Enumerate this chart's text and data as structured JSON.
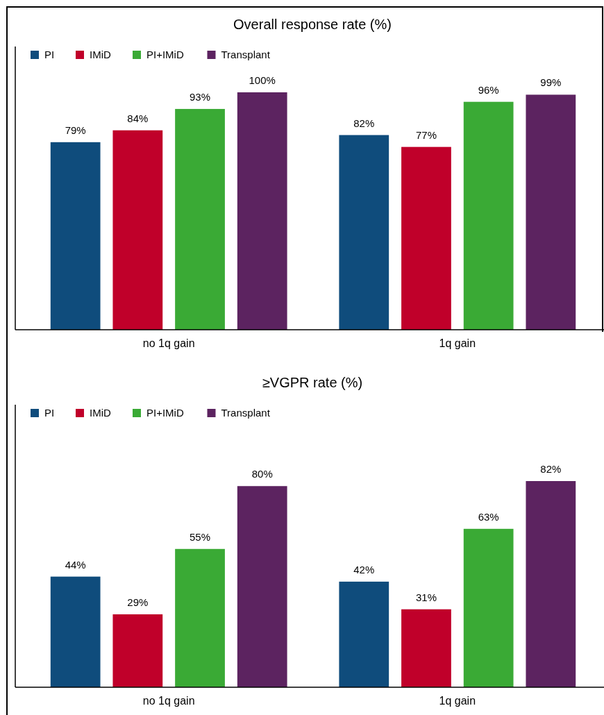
{
  "chart_data": [
    {
      "type": "bar",
      "title": "Overall response rate (%)",
      "categories": [
        "no 1q gain",
        "1q gain"
      ],
      "legend": "top left",
      "series": [
        {
          "name": "PI",
          "color": "#0f4c7c",
          "values": [
            79,
            82
          ],
          "value_labels": [
            "79%",
            "82%"
          ]
        },
        {
          "name": "IMiD",
          "color": "#c0002a",
          "values": [
            84,
            77
          ],
          "value_labels": [
            "84%",
            "77%"
          ]
        },
        {
          "name": "PI+IMiD",
          "color": "#3aaa35",
          "values": [
            93,
            96
          ],
          "value_labels": [
            "93%",
            "96%"
          ]
        },
        {
          "name": "Transplant",
          "color": "#5c2360",
          "values": [
            100,
            99
          ],
          "value_labels": [
            "100%",
            "99%"
          ]
        }
      ]
    },
    {
      "type": "bar",
      "title": "≥VGPR rate (%)",
      "categories": [
        "no 1q gain",
        "1q gain"
      ],
      "legend": "top left",
      "series": [
        {
          "name": "PI",
          "color": "#0f4c7c",
          "values": [
            44,
            42
          ],
          "value_labels": [
            "44%",
            "42%"
          ]
        },
        {
          "name": "IMiD",
          "color": "#c0002a",
          "values": [
            29,
            31
          ],
          "value_labels": [
            "29%",
            "31%"
          ]
        },
        {
          "name": "PI+IMiD",
          "color": "#3aaa35",
          "values": [
            55,
            63
          ],
          "value_labels": [
            "55%",
            "63%"
          ]
        },
        {
          "name": "Transplant",
          "color": "#5c2360",
          "values": [
            80,
            82
          ],
          "value_labels": [
            "80%",
            "82%"
          ]
        }
      ]
    }
  ]
}
